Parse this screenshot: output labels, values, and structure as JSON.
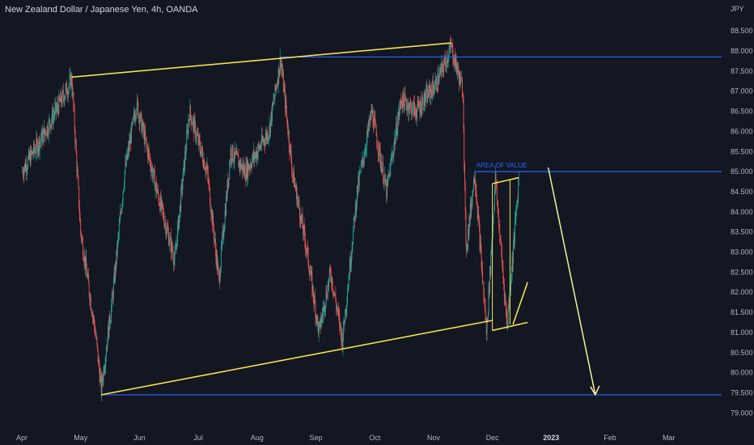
{
  "header": {
    "symbol_title": "New Zealand Dollar / Japanese Yen, 4h, OANDA",
    "price_unit": "JPY"
  },
  "chart_data": {
    "type": "candlestick",
    "title": "New Zealand Dollar / Japanese Yen, 4h, OANDA",
    "ylabel": "JPY",
    "ylim": [
      78.8,
      89.0
    ],
    "y_ticks": [
      "79.000",
      "79.500",
      "80.000",
      "80.500",
      "81.000",
      "81.500",
      "82.000",
      "82.500",
      "83.000",
      "83.500",
      "84.000",
      "84.500",
      "85.000",
      "85.500",
      "86.000",
      "86.500",
      "87.000",
      "87.500",
      "88.000",
      "88.500"
    ],
    "x_ticks": [
      {
        "label": "Apr",
        "month": 0
      },
      {
        "label": "May",
        "month": 1
      },
      {
        "label": "Jun",
        "month": 2
      },
      {
        "label": "Jul",
        "month": 3
      },
      {
        "label": "Aug",
        "month": 4
      },
      {
        "label": "Sep",
        "month": 5
      },
      {
        "label": "Oct",
        "month": 6
      },
      {
        "label": "Nov",
        "month": 7
      },
      {
        "label": "Dec",
        "month": 8
      },
      {
        "label": "2023",
        "month": 9,
        "bold": true
      },
      {
        "label": "Feb",
        "month": 10
      },
      {
        "label": "Mar",
        "month": 11
      }
    ],
    "colors": {
      "up": "#26a69a",
      "down": "#ef5350",
      "trendline": "#f5e050",
      "level": "#2962ff",
      "arrow": "#f5f0a0",
      "background": "#131722"
    },
    "price_path_approx": [
      [
        0.0,
        85.0
      ],
      [
        0.4,
        86.0
      ],
      [
        0.85,
        87.3
      ],
      [
        1.0,
        83.5
      ],
      [
        1.25,
        81.0
      ],
      [
        1.35,
        79.6
      ],
      [
        1.55,
        82.0
      ],
      [
        1.75,
        85.0
      ],
      [
        1.95,
        86.7
      ],
      [
        2.3,
        84.5
      ],
      [
        2.6,
        82.8
      ],
      [
        2.85,
        86.5
      ],
      [
        3.15,
        85.0
      ],
      [
        3.35,
        82.3
      ],
      [
        3.55,
        85.5
      ],
      [
        3.8,
        85.0
      ],
      [
        4.2,
        86.0
      ],
      [
        4.4,
        87.8
      ],
      [
        4.6,
        85.0
      ],
      [
        4.85,
        83.0
      ],
      [
        5.05,
        81.0
      ],
      [
        5.25,
        82.5
      ],
      [
        5.45,
        80.8
      ],
      [
        5.7,
        84.5
      ],
      [
        5.95,
        86.5
      ],
      [
        6.2,
        84.5
      ],
      [
        6.45,
        86.8
      ],
      [
        6.7,
        86.5
      ],
      [
        7.05,
        87.2
      ],
      [
        7.3,
        88.1
      ],
      [
        7.5,
        87.0
      ],
      [
        7.55,
        83.0
      ],
      [
        7.7,
        85.0
      ],
      [
        7.9,
        81.0
      ],
      [
        8.05,
        84.8
      ],
      [
        8.25,
        81.2
      ],
      [
        8.45,
        84.8
      ]
    ],
    "annotations": {
      "levels": [
        {
          "price": 87.85,
          "from_month": 4.4,
          "label": ""
        },
        {
          "price": 85.0,
          "from_month": 7.7,
          "label": "AREA OF VALUE"
        },
        {
          "price": 79.45,
          "from_month": 1.35,
          "label": ""
        }
      ],
      "channel_upper": [
        [
          0.85,
          87.35
        ],
        [
          7.3,
          88.2
        ]
      ],
      "channel_lower": [
        [
          1.35,
          79.45
        ],
        [
          8.0,
          81.3
        ]
      ],
      "flag_upper": [
        [
          8.0,
          84.7
        ],
        [
          8.45,
          84.85
        ]
      ],
      "flag_lower": [
        [
          8.0,
          81.05
        ],
        [
          8.6,
          81.25
        ]
      ],
      "flag_rise": [
        [
          8.35,
          81.2
        ],
        [
          8.6,
          82.25
        ]
      ],
      "projection_arrow": [
        [
          8.95,
          85.1
        ],
        [
          9.75,
          79.45
        ]
      ]
    }
  }
}
